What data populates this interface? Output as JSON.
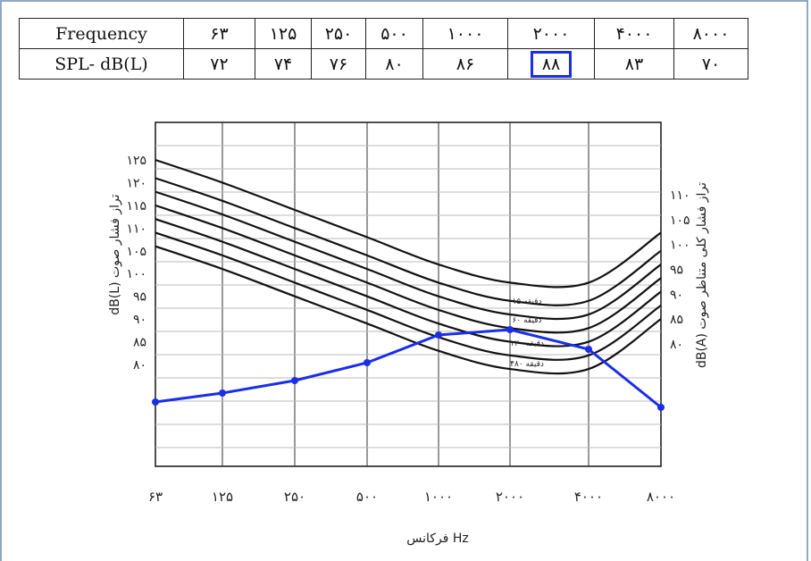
{
  "table": {
    "rows": [
      {
        "label": "Frequency",
        "cells": [
          "۶۳",
          "۱۲۵",
          "۲۵۰",
          "۵۰۰",
          "۱۰۰۰",
          "۲۰۰۰",
          "۴۰۰۰",
          "۸۰۰۰"
        ]
      },
      {
        "label": "SPL- dB(L)",
        "cells": [
          "۷۲",
          "۷۴",
          "۷۶",
          "۸۰",
          "۸۶",
          "۸۸",
          "۸۳",
          "۷۰"
        ]
      }
    ],
    "highlight_color": "#1a2ee8"
  },
  "chart_data": {
    "type": "line",
    "x": [
      "۶۳",
      "۱۲۵",
      "۲۵۰",
      "۵۰۰",
      "۱۰۰۰",
      "۲۰۰۰",
      "۴۰۰۰",
      "۸۰۰۰"
    ],
    "xlabel": "فرکانس Hz",
    "left_ylabel": "dB(L)  تراز فشار صوت",
    "right_ylabel": "dB(A)  تراز فشار کلی متناظر صوت",
    "left_ticks": [
      "۸۰",
      "۸۵",
      "۹۰",
      "۹۵",
      "۱۰۰",
      "۱۰۵",
      "۱۱۰",
      "۱۱۵",
      "۱۲۰",
      "۱۲۵"
    ],
    "left_tick_values": [
      80,
      85,
      90,
      95,
      100,
      105,
      110,
      115,
      120,
      125
    ],
    "right_ticks": [
      "۸۰",
      "۸۵",
      "۹۰",
      "۹۵",
      "۱۰۰",
      "۱۰۵",
      "۱۱۰"
    ],
    "right_tick_values": [
      80,
      85,
      90,
      95,
      100,
      105,
      110
    ],
    "curve_labels": [
      "۱۵ دقیقه",
      "۶۰ دقیقه",
      "۱۲۰ دقیقه",
      "۴۸۰ دقیقه"
    ],
    "grid": true,
    "limit_curves": [
      {
        "values": [
          125,
          120,
          114,
          108,
          102,
          98,
          98,
          109
        ]
      },
      {
        "values": [
          121,
          116,
          110,
          104,
          98,
          94,
          94,
          105
        ]
      },
      {
        "values": [
          118,
          113,
          107,
          101,
          95,
          91,
          91,
          102
        ]
      },
      {
        "values": [
          115,
          110,
          104,
          98,
          92,
          88,
          88,
          99
        ]
      },
      {
        "values": [
          112,
          107,
          101,
          95,
          89,
          85,
          85,
          96
        ]
      },
      {
        "values": [
          109,
          104,
          98,
          92,
          86,
          82,
          82,
          93
        ]
      },
      {
        "values": [
          106,
          101,
          95,
          89,
          83,
          79,
          79,
          90
        ]
      }
    ],
    "series": [
      {
        "values": [
          72,
          74,
          76,
          80,
          86,
          88,
          83,
          70
        ],
        "color": "#1a2ee8"
      }
    ]
  }
}
